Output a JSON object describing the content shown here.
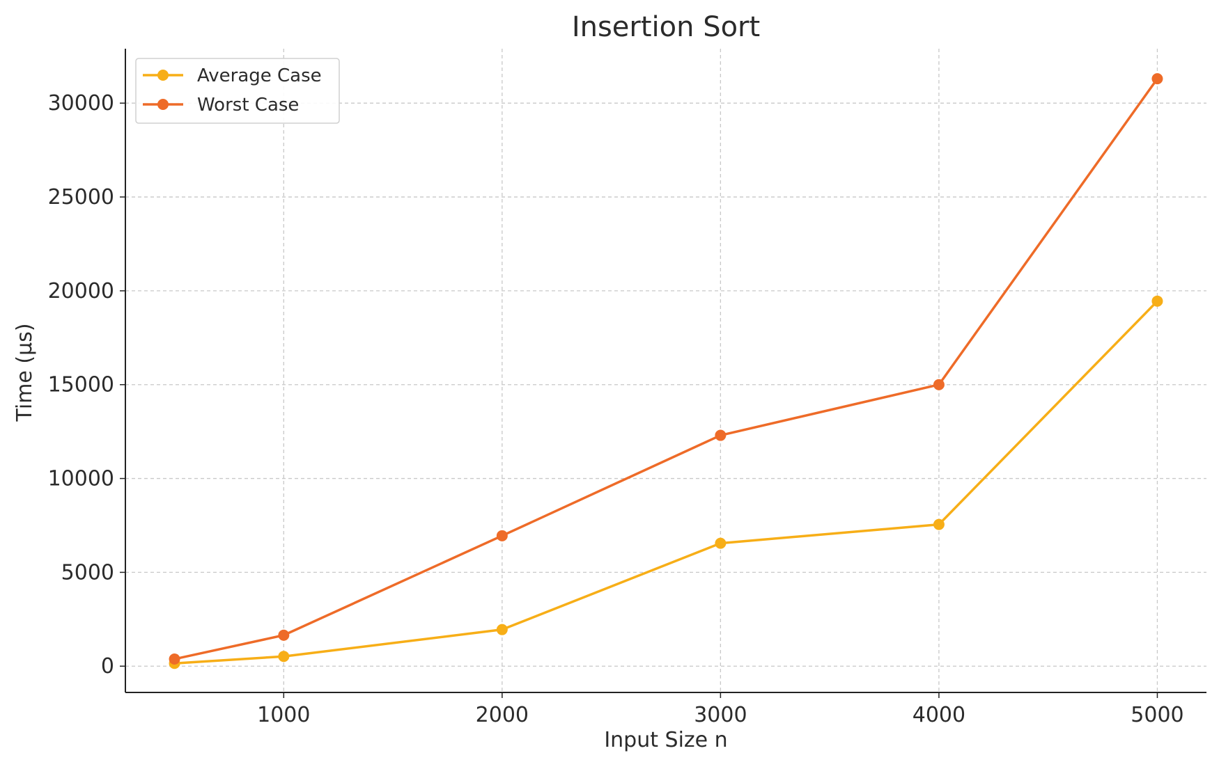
{
  "chart_data": {
    "type": "line",
    "title": "Insertion Sort",
    "xlabel": "Input Size n",
    "ylabel": "Time (µs)",
    "x": [
      500,
      1000,
      2000,
      3000,
      4000,
      5000
    ],
    "series": [
      {
        "name": "Average Case",
        "color": "#F7AE17",
        "values": [
          150,
          520,
          1950,
          6550,
          7550,
          19450
        ]
      },
      {
        "name": "Worst Case",
        "color": "#EE6B28",
        "values": [
          380,
          1650,
          6950,
          12300,
          15000,
          31300
        ]
      }
    ],
    "xlim": [
      275,
      5225
    ],
    "ylim": [
      -1400,
      32900
    ],
    "xticks": [
      1000,
      2000,
      3000,
      4000,
      5000
    ],
    "yticks": [
      0,
      5000,
      10000,
      15000,
      20000,
      25000,
      30000
    ],
    "grid": true,
    "legend_position": "top-left"
  }
}
